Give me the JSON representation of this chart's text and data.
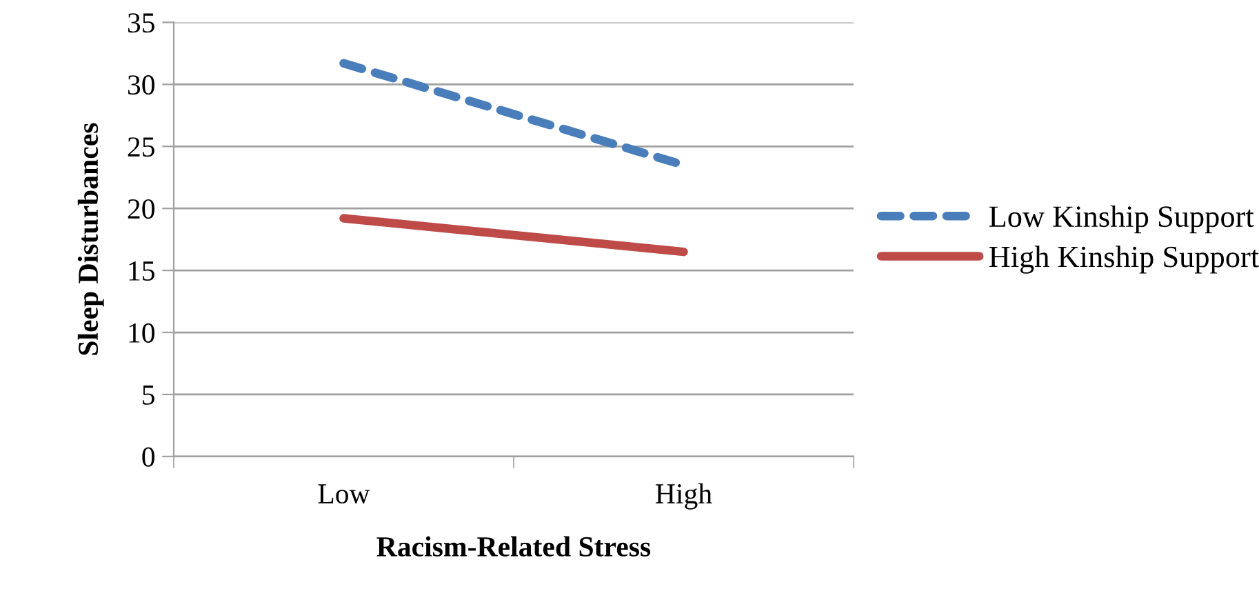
{
  "chart_data": {
    "type": "line",
    "xlabel": "Racism-Related Stress",
    "ylabel": "Sleep Disturbances",
    "categories": [
      "Low",
      "High"
    ],
    "series": [
      {
        "name": "Low Kinship Support",
        "color": "#4a7ebb",
        "line_style": "dashed",
        "values": [
          31.7,
          23.5
        ]
      },
      {
        "name": "High Kinship Support",
        "color": "#be4b48",
        "line_style": "solid",
        "values": [
          19.2,
          16.5
        ]
      }
    ],
    "ylim": [
      0,
      35
    ],
    "yticks": [
      0,
      5,
      10,
      15,
      20,
      25,
      30,
      35
    ],
    "grid": "y",
    "legend": "right",
    "marker": "none"
  }
}
